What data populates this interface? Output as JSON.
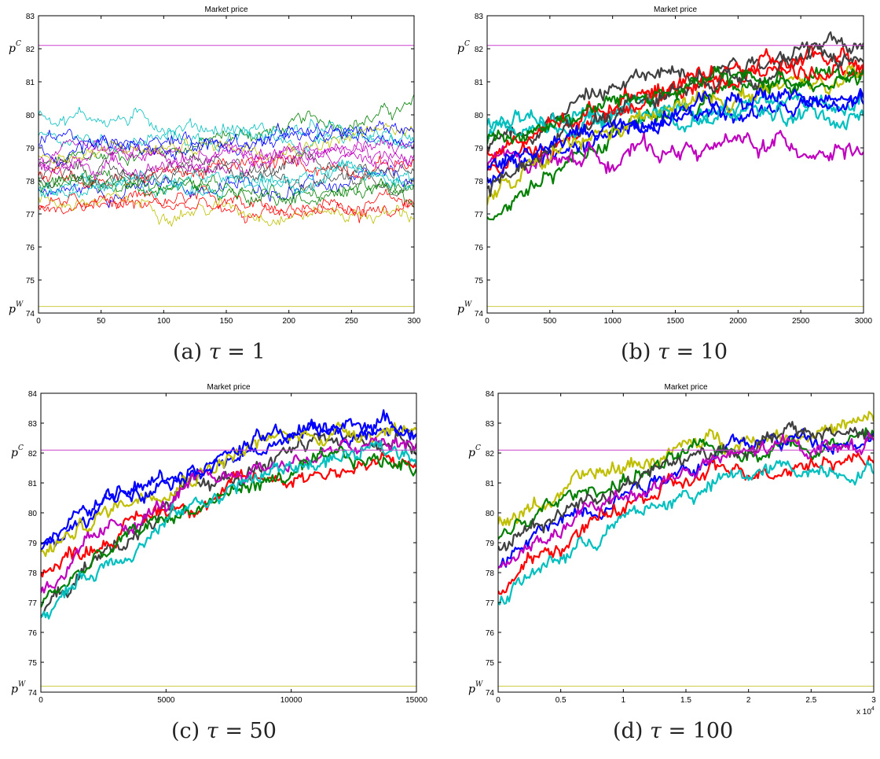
{
  "chart_data": [
    {
      "type": "line",
      "title": "Market price",
      "caption_label": "(a)",
      "caption_tau": "τ",
      "caption_value": "= 1",
      "xlim": [
        0,
        300
      ],
      "ylim": [
        74,
        83
      ],
      "x_ticks": [
        0,
        50,
        100,
        150,
        200,
        250,
        300
      ],
      "y_ticks": [
        74,
        75,
        76,
        77,
        78,
        79,
        80,
        81,
        82,
        83
      ],
      "x_multiplier": "",
      "reference_lines": [
        {
          "label": "p",
          "sup": "C",
          "y": 82.1,
          "color": "#cc44cc"
        },
        {
          "label": "p",
          "sup": "W",
          "y": 74.2,
          "color": "#cccc44"
        }
      ],
      "series_start": [
        78.4,
        77.2,
        77.7,
        79.2,
        80.1,
        78.6,
        77.4,
        78.3,
        78.9,
        78.1,
        77.9,
        78.5,
        77.6,
        78.7,
        78.2,
        77.3,
        79.0,
        78.0,
        78.4,
        77.8
      ],
      "series_end": [
        80.2,
        77.3,
        77.9,
        79.3,
        79.2,
        78.8,
        77.0,
        78.1,
        79.4,
        78.6,
        77.6,
        79.0,
        78.3,
        79.5,
        78.4,
        77.1,
        79.6,
        77.7,
        78.9,
        78.2
      ],
      "series_colors": [
        "#008000",
        "#ff0000",
        "#0000ff",
        "#00bfbf",
        "#00bfbf",
        "#bf00bf",
        "#bfbf00",
        "#404040",
        "#0000ff",
        "#ff0000",
        "#008000",
        "#bf00bf",
        "#00bfbf",
        "#bfbf00",
        "#404040",
        "#ff0000",
        "#0000ff",
        "#008000",
        "#bf00bf",
        "#00bfbf"
      ],
      "noise": 0.25
    },
    {
      "type": "line",
      "title": "Market price",
      "caption_label": "(b)",
      "caption_tau": "τ",
      "caption_value": "= 10",
      "xlim": [
        0,
        3000
      ],
      "ylim": [
        74,
        83
      ],
      "x_ticks": [
        0,
        500,
        1000,
        1500,
        2000,
        2500,
        3000
      ],
      "y_ticks": [
        74,
        75,
        76,
        77,
        78,
        79,
        80,
        81,
        82,
        83
      ],
      "x_multiplier": "",
      "reference_lines": [
        {
          "label": "p",
          "sup": "C",
          "y": 82.1,
          "color": "#cc44cc"
        },
        {
          "label": "p",
          "sup": "W",
          "y": 74.2,
          "color": "#cccc44"
        }
      ],
      "series_start": [
        79.0,
        78.2,
        77.0,
        79.5,
        78.0,
        78.5,
        77.3,
        79.8,
        78.8,
        77.8,
        79.1,
        78.3
      ],
      "series_end": [
        82.0,
        81.6,
        81.1,
        80.5,
        80.3,
        79.1,
        80.9,
        80.0,
        81.4,
        81.8,
        81.2,
        80.6
      ],
      "series_colors": [
        "#404040",
        "#ff0000",
        "#008000",
        "#00bfbf",
        "#0000ff",
        "#bf00bf",
        "#bfbf00",
        "#00bfbf",
        "#ff0000",
        "#404040",
        "#008000",
        "#0000ff"
      ],
      "noise": 0.3
    },
    {
      "type": "line",
      "title": "Market price",
      "caption_label": "(c)",
      "caption_tau": "τ",
      "caption_value": "= 50",
      "xlim": [
        0,
        15000
      ],
      "ylim": [
        74,
        84
      ],
      "x_ticks": [
        0,
        5000,
        10000,
        15000
      ],
      "y_ticks": [
        74,
        75,
        76,
        77,
        78,
        79,
        80,
        81,
        82,
        83,
        84
      ],
      "x_multiplier": "",
      "reference_lines": [
        {
          "label": "p",
          "sup": "C",
          "y": 82.1,
          "color": "#cc44cc"
        },
        {
          "label": "p",
          "sup": "W",
          "y": 74.2,
          "color": "#cccc44"
        }
      ],
      "series_start": [
        76.6,
        78.8,
        78.0,
        78.5,
        77.5,
        77.0,
        76.5,
        79.0
      ],
      "series_end": [
        82.5,
        82.8,
        81.6,
        82.9,
        82.2,
        81.7,
        82.0,
        83.0
      ],
      "series_colors": [
        "#404040",
        "#0000ff",
        "#ff0000",
        "#bfbf00",
        "#bf00bf",
        "#008000",
        "#00bfbf",
        "#0000ff"
      ],
      "noise": 0.3
    },
    {
      "type": "line",
      "title": "Market price",
      "caption_label": "(d)",
      "caption_tau": "τ",
      "caption_value": "= 100",
      "xlim": [
        0,
        3
      ],
      "ylim": [
        74,
        84
      ],
      "x_ticks": [
        0,
        0.5,
        1,
        1.5,
        2,
        2.5,
        3
      ],
      "y_ticks": [
        74,
        75,
        76,
        77,
        78,
        79,
        80,
        81,
        82,
        83,
        84
      ],
      "x_multiplier": "x 10",
      "x_multiplier_exp": "4",
      "reference_lines": [
        {
          "label": "p",
          "sup": "C",
          "y": 82.1,
          "color": "#cc44cc"
        },
        {
          "label": "p",
          "sup": "W",
          "y": 74.2,
          "color": "#cccc44"
        }
      ],
      "series_start": [
        79.5,
        79.2,
        78.3,
        77.5,
        77.0,
        78.8,
        78.0
      ],
      "series_end": [
        82.9,
        82.5,
        82.6,
        81.9,
        81.6,
        82.7,
        82.3
      ],
      "series_colors": [
        "#bfbf00",
        "#008000",
        "#0000ff",
        "#ff0000",
        "#00bfbf",
        "#404040",
        "#bf00bf"
      ],
      "noise": 0.3
    }
  ]
}
